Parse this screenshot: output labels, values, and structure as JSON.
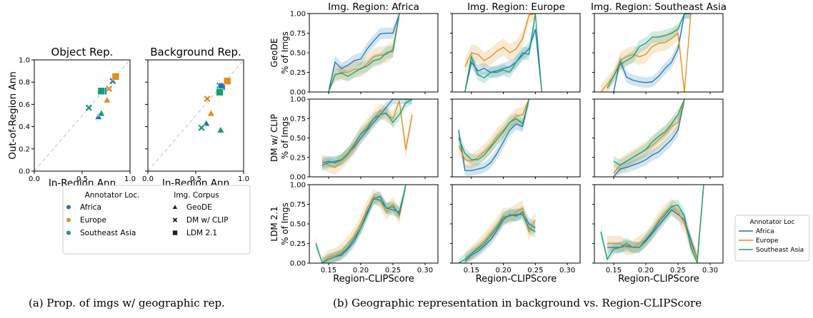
{
  "colors": {
    "africa": "#1f77b4",
    "europe": "#dd8f1f",
    "southeast_asia": "#1a9c74",
    "diag": "#c8c8c8",
    "box": "#444444"
  },
  "captions": {
    "a": "(a) Prop. of imgs w/ geographic rep.",
    "b": "(b) Geographic representation in background vs. Region-CLIPScore"
  },
  "chart_data": [
    {
      "id": "a",
      "type": "scatter",
      "ylabel": "Out-of-Region Ann",
      "xlim": [
        0,
        1
      ],
      "ylim": [
        0,
        1
      ],
      "xticks": [
        "0.0",
        "0.5",
        "1.0"
      ],
      "yticks": [
        "0.0",
        "0.2",
        "0.4",
        "0.6",
        "0.8",
        "1.0"
      ],
      "panels": [
        {
          "title": "Object Rep.",
          "xlabel": "In-Region Ann",
          "points": [
            {
              "loc": "Africa",
              "corpus": "GeoDE",
              "x": 0.67,
              "y": 0.49
            },
            {
              "loc": "Europe",
              "corpus": "GeoDE",
              "x": 0.76,
              "y": 0.64
            },
            {
              "loc": "Southeast Asia",
              "corpus": "GeoDE",
              "x": 0.7,
              "y": 0.52
            },
            {
              "loc": "Africa",
              "corpus": "DM w/ CLIP",
              "x": 0.82,
              "y": 0.81
            },
            {
              "loc": "Europe",
              "corpus": "DM w/ CLIP",
              "x": 0.78,
              "y": 0.74
            },
            {
              "loc": "Southeast Asia",
              "corpus": "DM w/ CLIP",
              "x": 0.57,
              "y": 0.57
            },
            {
              "loc": "Africa",
              "corpus": "LDM 2.1",
              "x": 0.72,
              "y": 0.72
            },
            {
              "loc": "Europe",
              "corpus": "LDM 2.1",
              "x": 0.85,
              "y": 0.85
            },
            {
              "loc": "Southeast Asia",
              "corpus": "LDM 2.1",
              "x": 0.7,
              "y": 0.72
            }
          ]
        },
        {
          "title": "Background Rep.",
          "xlabel": "In-Region Ann",
          "points": [
            {
              "loc": "Africa",
              "corpus": "GeoDE",
              "x": 0.61,
              "y": 0.43
            },
            {
              "loc": "Europe",
              "corpus": "GeoDE",
              "x": 0.66,
              "y": 0.52
            },
            {
              "loc": "Southeast Asia",
              "corpus": "GeoDE",
              "x": 0.76,
              "y": 0.37
            },
            {
              "loc": "Africa",
              "corpus": "DM w/ CLIP",
              "x": 0.75,
              "y": 0.77
            },
            {
              "loc": "Europe",
              "corpus": "DM w/ CLIP",
              "x": 0.62,
              "y": 0.65
            },
            {
              "loc": "Southeast Asia",
              "corpus": "DM w/ CLIP",
              "x": 0.56,
              "y": 0.39
            },
            {
              "loc": "Africa",
              "corpus": "LDM 2.1",
              "x": 0.77,
              "y": 0.76
            },
            {
              "loc": "Europe",
              "corpus": "LDM 2.1",
              "x": 0.83,
              "y": 0.81
            },
            {
              "loc": "Southeast Asia",
              "corpus": "LDM 2.1",
              "x": 0.75,
              "y": 0.71
            }
          ]
        }
      ],
      "legend": {
        "loc_title": "Annotator Loc.",
        "corpus_title": "Img. Corpus",
        "locs": [
          "Africa",
          "Europe",
          "Southeast Asia"
        ],
        "corpora": [
          "GeoDE",
          "DM w/ CLIP",
          "LDM 2.1"
        ]
      }
    },
    {
      "id": "b",
      "type": "line",
      "xlabel": "Region-CLIPScore",
      "xlim": [
        0.12,
        0.32
      ],
      "ylim": [
        0,
        1
      ],
      "xticks": [
        "0.15",
        "0.20",
        "0.25",
        "0.30"
      ],
      "yticks": [
        "0.00",
        "0.25",
        "0.50",
        "0.75",
        "1.00"
      ],
      "columns": [
        "Img. Region: Africa",
        "Img. Region: Europe",
        "Img. Region: Southeast Asia"
      ],
      "rows": [
        {
          "label1": "GeoDE",
          "label2": "% of Imgs"
        },
        {
          "label1": "DM w/ CLIP",
          "label2": "% of Imgs"
        },
        {
          "label1": "LDM 2.1",
          "label2": "% of Imgs"
        }
      ],
      "legend": {
        "title": "Annotator Loc",
        "entries": [
          "Africa",
          "Europe",
          "Southeast Asia"
        ]
      },
      "x": [
        0.13,
        0.14,
        0.15,
        0.16,
        0.17,
        0.18,
        0.19,
        0.2,
        0.21,
        0.22,
        0.23,
        0.24,
        0.25,
        0.26,
        0.27,
        0.28,
        0.29,
        0.3
      ],
      "panels": [
        [
          {
            "x_end": 0.28,
            "series": {
              "Africa": [
                null,
                null,
                0.0,
                0.38,
                0.3,
                0.34,
                0.4,
                0.42,
                0.55,
                0.65,
                0.74,
                0.75,
                0.75,
                1.0,
                null,
                null,
                null,
                null
              ],
              "Europe": [
                null,
                null,
                0.0,
                0.22,
                0.25,
                0.25,
                0.29,
                0.29,
                0.36,
                0.45,
                0.47,
                0.48,
                0.55,
                1.0,
                null,
                null,
                null,
                null
              ],
              "Southeast Asia": [
                null,
                null,
                0.0,
                0.22,
                0.24,
                0.2,
                0.25,
                0.3,
                0.33,
                0.4,
                0.42,
                0.5,
                0.52,
                1.0,
                null,
                null,
                null,
                null
              ]
            }
          },
          {
            "x_end": 0.26,
            "series": {
              "Africa": [
                null,
                0.0,
                0.38,
                0.27,
                0.3,
                0.25,
                0.27,
                0.3,
                0.32,
                0.38,
                0.47,
                0.55,
                0.8,
                0.0,
                null,
                null,
                null,
                null
              ],
              "Europe": [
                null,
                0.32,
                0.5,
                0.48,
                0.4,
                0.45,
                0.52,
                0.57,
                0.5,
                0.55,
                0.68,
                0.98,
                1.0,
                null,
                null,
                null,
                null,
                null
              ],
              "Southeast Asia": [
                null,
                0.0,
                0.45,
                0.22,
                0.18,
                0.25,
                0.25,
                0.28,
                0.25,
                0.38,
                0.5,
                0.48,
                1.0,
                0.0,
                null,
                null,
                null,
                null
              ]
            }
          },
          {
            "x_end": 0.29,
            "series": {
              "Africa": [
                null,
                null,
                0.0,
                0.4,
                0.19,
                0.15,
                0.13,
                0.12,
                0.13,
                0.2,
                0.3,
                0.38,
                0.55,
                1.0,
                1.0,
                null,
                null,
                null
              ],
              "Europe": [
                0.0,
                0.1,
                0.2,
                0.4,
                0.45,
                0.48,
                0.45,
                0.48,
                0.58,
                0.62,
                0.63,
                0.68,
                0.75,
                0.0,
                1.0,
                null,
                null,
                null
              ],
              "Southeast Asia": [
                null,
                0.05,
                0.2,
                0.35,
                0.4,
                0.45,
                0.58,
                0.62,
                0.7,
                0.7,
                0.72,
                0.75,
                0.8,
                1.0,
                1.0,
                null,
                null,
                null
              ]
            }
          }
        ],
        [
          {
            "x_end": 0.29,
            "series": {
              "Africa": [
                null,
                0.18,
                0.2,
                0.18,
                0.22,
                0.3,
                0.38,
                0.5,
                0.6,
                0.7,
                0.8,
                0.9,
                1.0,
                1.0,
                1.0,
                1.0,
                null,
                null
              ],
              "Europe": [
                null,
                0.2,
                0.15,
                0.12,
                0.2,
                0.28,
                0.4,
                0.55,
                0.65,
                0.75,
                0.85,
                0.8,
                0.75,
                0.98,
                0.35,
                0.8,
                null,
                null
              ],
              "Southeast Asia": [
                null,
                0.15,
                0.18,
                0.2,
                0.22,
                0.3,
                0.42,
                0.55,
                0.62,
                0.75,
                0.8,
                0.82,
                0.7,
                0.8,
                0.95,
                1.0,
                null,
                null
              ]
            }
          },
          {
            "x_end": 0.24,
            "series": {
              "Africa": [
                0.6,
                0.08,
                0.08,
                0.1,
                0.12,
                0.18,
                0.3,
                0.45,
                0.6,
                0.68,
                0.65,
                1.0,
                null,
                null,
                null,
                null,
                null,
                null
              ],
              "Europe": [
                0.4,
                0.22,
                0.2,
                0.25,
                0.32,
                0.4,
                0.52,
                0.6,
                0.7,
                0.78,
                0.8,
                1.0,
                null,
                null,
                null,
                null,
                null,
                null
              ],
              "Southeast Asia": [
                0.5,
                0.3,
                0.22,
                0.22,
                0.28,
                0.38,
                0.48,
                0.58,
                0.7,
                0.75,
                0.68,
                1.0,
                null,
                null,
                null,
                null,
                null,
                null
              ]
            }
          },
          {
            "x_end": 0.27,
            "series": {
              "Africa": [
                null,
                null,
                0.0,
                0.1,
                0.12,
                0.15,
                0.18,
                0.22,
                0.28,
                0.32,
                0.4,
                0.48,
                0.6,
                1.0,
                null,
                null,
                null,
                null
              ],
              "Europe": [
                null,
                null,
                0.05,
                0.15,
                0.2,
                0.25,
                0.3,
                0.35,
                0.4,
                0.48,
                0.55,
                0.65,
                0.7,
                1.0,
                null,
                null,
                null,
                null
              ],
              "Southeast Asia": [
                null,
                null,
                0.2,
                0.15,
                0.2,
                0.25,
                0.3,
                0.35,
                0.45,
                0.52,
                0.58,
                0.68,
                0.8,
                1.0,
                null,
                null,
                null,
                null
              ]
            }
          }
        ],
        [
          {
            "x_end": 0.28,
            "series": {
              "Africa": [
                null,
                0.0,
                0.05,
                0.08,
                0.1,
                0.18,
                0.28,
                0.45,
                0.65,
                0.82,
                0.85,
                0.7,
                0.68,
                0.65,
                1.0,
                null,
                null,
                null
              ],
              "Europe": [
                null,
                0.0,
                0.08,
                0.1,
                0.15,
                0.25,
                0.35,
                0.5,
                0.7,
                0.85,
                0.8,
                0.65,
                0.75,
                0.6,
                1.0,
                null,
                null,
                null
              ],
              "Southeast Asia": [
                0.25,
                0.0,
                0.05,
                0.08,
                0.12,
                0.2,
                0.32,
                0.45,
                0.62,
                0.82,
                0.8,
                0.7,
                0.72,
                0.62,
                1.0,
                null,
                null,
                null
              ]
            }
          },
          {
            "x_end": 0.26,
            "series": {
              "Africa": [
                null,
                0.02,
                0.1,
                0.15,
                0.22,
                0.3,
                0.42,
                0.55,
                0.62,
                0.6,
                0.65,
                0.5,
                0.45,
                null,
                null,
                null,
                null,
                null
              ],
              "Europe": [
                null,
                0.05,
                0.12,
                0.2,
                0.28,
                0.38,
                0.48,
                0.6,
                0.6,
                0.65,
                0.7,
                0.4,
                0.55,
                null,
                null,
                null,
                null,
                null
              ],
              "Southeast Asia": [
                0.0,
                0.05,
                0.12,
                0.18,
                0.25,
                0.35,
                0.45,
                0.58,
                0.6,
                0.62,
                0.62,
                0.45,
                0.4,
                null,
                null,
                null,
                null,
                null
              ]
            }
          },
          {
            "x_end": 0.3,
            "series": {
              "Africa": [
                null,
                0.2,
                0.2,
                0.2,
                0.22,
                0.2,
                0.2,
                0.28,
                0.38,
                0.48,
                0.58,
                0.68,
                0.62,
                0.55,
                0.3,
                0.05,
                1.0,
                null
              ],
              "Europe": [
                null,
                0.25,
                0.25,
                0.25,
                0.2,
                0.2,
                0.25,
                0.3,
                0.4,
                0.55,
                0.65,
                0.72,
                0.65,
                0.5,
                0.25,
                0.05,
                1.0,
                null
              ],
              "Southeast Asia": [
                0.4,
                0.05,
                0.18,
                0.2,
                0.25,
                0.2,
                0.2,
                0.3,
                0.4,
                0.52,
                0.62,
                0.72,
                0.74,
                0.6,
                0.2,
                0.0,
                1.0,
                null
              ]
            }
          }
        ]
      ]
    }
  ]
}
